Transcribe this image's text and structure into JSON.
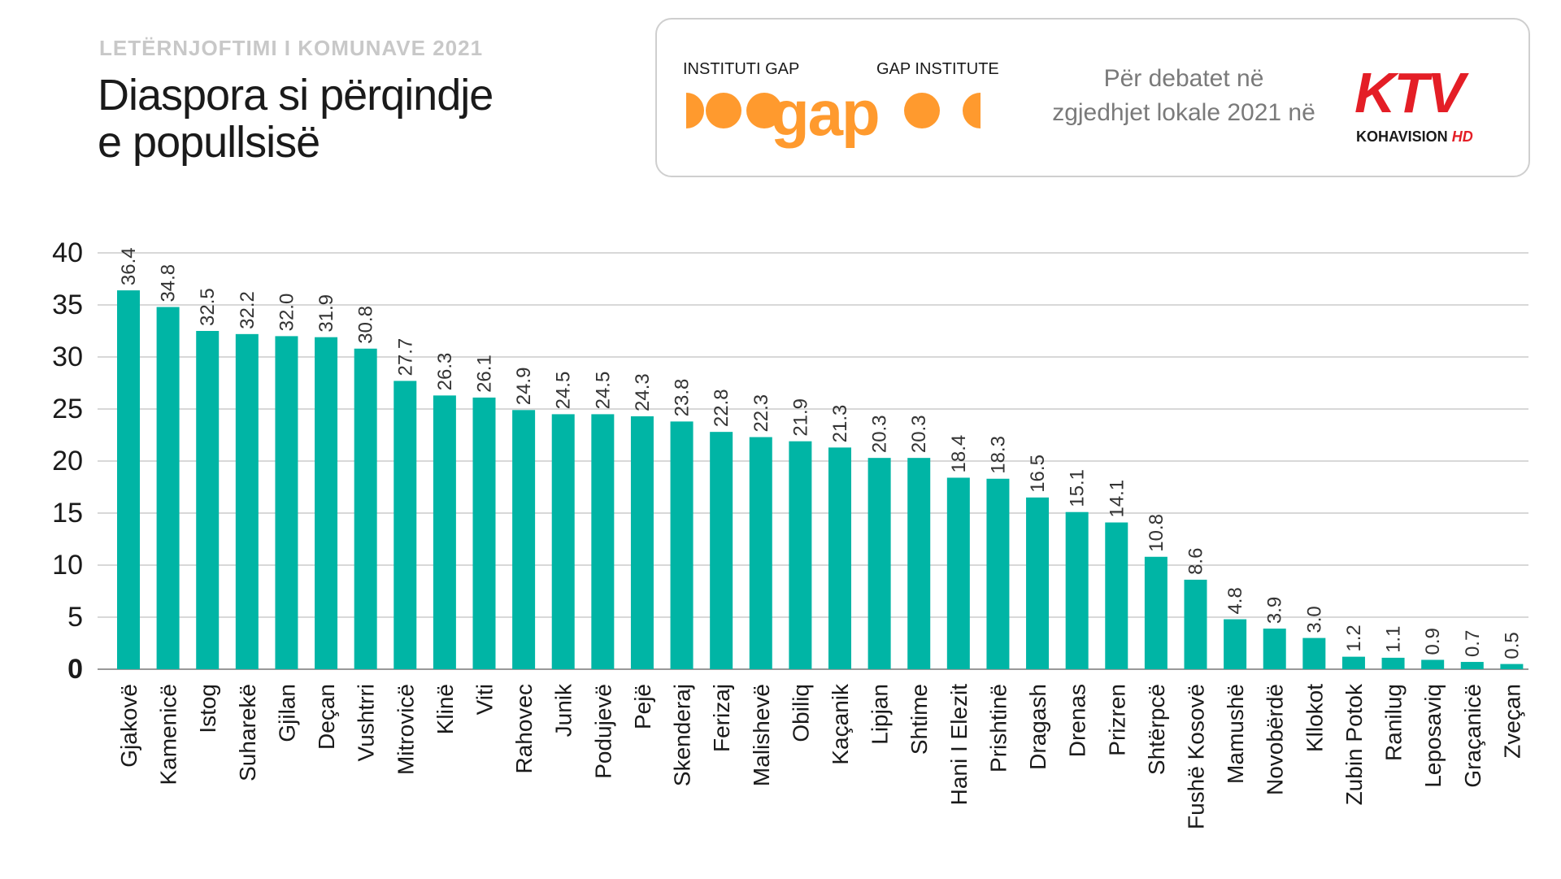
{
  "header": {
    "supertitle": "LETËRNJOFTIMI I KOMUNAVE 2021",
    "title_line1": "Diaspora si përqindje",
    "title_line2": "e popullsisë"
  },
  "banner": {
    "gap_left": "INSTITUTI GAP",
    "gap_right": "GAP INSTITUTE",
    "gap_word": "gap",
    "debate_line1": "Për debatet në",
    "debate_line2": "zgjedhjet lokale 2021 në",
    "ktv_text": "KTV",
    "ktv_sub": "KOHAVISION",
    "ktv_hd": "HD",
    "gap_color": "#ff9a2e",
    "ktv_color": "#e41e26"
  },
  "chart_data": {
    "type": "bar",
    "categories": [
      "Gjakovë",
      "Kamenicë",
      "Istog",
      "Suharekë",
      "Gjilan",
      "Deçan",
      "Vushtrri",
      "Mitrovicë",
      "Klinë",
      "Viti",
      "Rahovec",
      "Junik",
      "Podujevë",
      "Pejë",
      "Skenderaj",
      "Ferizaj",
      "Malishevë",
      "Obiliq",
      "Kaçanik",
      "Lipjan",
      "Shtime",
      "Hani I Elezit",
      "Prishtinë",
      "Dragash",
      "Drenas",
      "Prizren",
      "Shtërpcë",
      "Fushë Kosovë",
      "Mamushë",
      "Novobërdë",
      "Kllokot",
      "Zubin Potok",
      "Ranilug",
      "Leposaviq",
      "Graçanicë",
      "Zveçan"
    ],
    "values": [
      36.4,
      34.8,
      32.5,
      32.2,
      32.0,
      31.9,
      30.8,
      27.7,
      26.3,
      26.1,
      24.9,
      24.5,
      24.5,
      24.3,
      23.8,
      22.8,
      22.3,
      21.9,
      21.3,
      20.3,
      20.3,
      18.4,
      18.3,
      16.5,
      15.1,
      14.1,
      10.8,
      8.6,
      4.8,
      3.9,
      3.0,
      1.2,
      1.1,
      0.9,
      0.7,
      0.5
    ],
    "value_labels": [
      "36.4",
      "34.8",
      "32.5",
      "32.2",
      "32.0",
      "31.9",
      "30.8",
      "27.7",
      "26.3",
      "26.1",
      "24.9",
      "24.5",
      "24.5",
      "24.3",
      "23.8",
      "22.8",
      "22.3",
      "21.9",
      "21.3",
      "20.3",
      "20.3",
      "18.4",
      "18.3",
      "16.5",
      "15.1",
      "14.1",
      "10.8",
      "8.6",
      "4.8",
      "3.9",
      "3.0",
      "1.2",
      "1.1",
      "0.9",
      "0.7",
      "0.5"
    ],
    "yticks": [
      "0",
      "5",
      "10",
      "15",
      "20",
      "25",
      "30",
      "35",
      "40"
    ],
    "ylim": [
      0,
      40
    ],
    "grid": true,
    "legend": "none",
    "bar_color": "#00b5a5"
  }
}
